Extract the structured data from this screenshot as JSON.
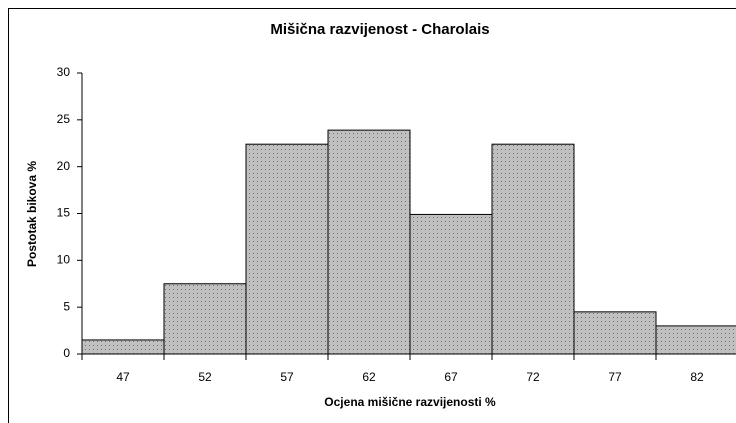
{
  "chart_data": {
    "type": "bar",
    "title": "Mišična razvijenost - Charolais",
    "x_label": "Ocjena mišične razvijenosti %",
    "y_label": "Postotak bikova %",
    "categories": [
      "47",
      "52",
      "57",
      "62",
      "67",
      "72",
      "77",
      "82"
    ],
    "values": [
      1.5,
      7.5,
      22.4,
      23.9,
      14.9,
      22.4,
      4.5,
      3.0
    ],
    "color": "#c0c0c0",
    "ylim": [
      0,
      30
    ],
    "yticks": [
      0,
      5,
      10,
      15,
      20,
      25,
      30
    ],
    "grid": false
  }
}
